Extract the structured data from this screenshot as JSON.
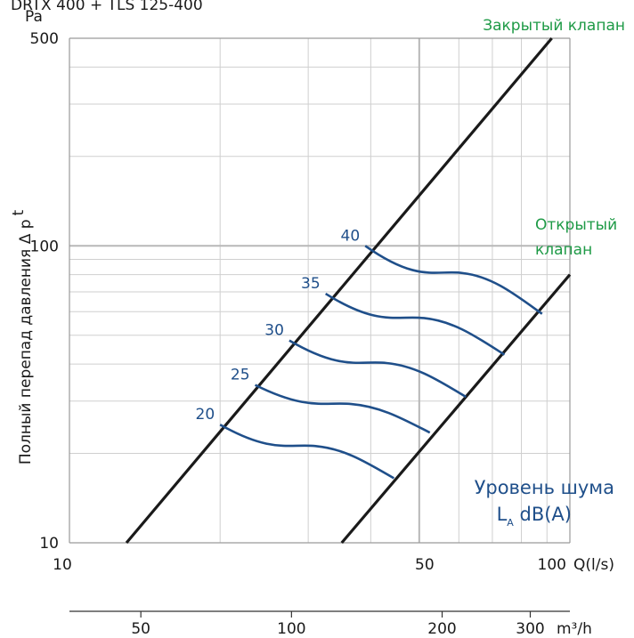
{
  "chart_data": {
    "type": "line",
    "title": "DRTX 400 + TLS 125-400",
    "ylabel": "Полный перепад давления Δ p",
    "ylabel_superscript": "t",
    "yunit": "Pa",
    "xlabel": "Q(l/s)",
    "xlabel2_unit": "m³/h",
    "x_scale": "log",
    "y_scale": "log",
    "xlim": [
      10,
      100
    ],
    "ylim": [
      10,
      500
    ],
    "grid": true,
    "x_ticks": [
      "10",
      "50",
      "100"
    ],
    "y_ticks": [
      "10",
      "100",
      "500"
    ],
    "x2_ticks": [
      "50",
      "100",
      "200",
      "300"
    ],
    "series": [
      {
        "name": "Закрытый клапан",
        "x": [
          13,
          92
        ],
        "y": [
          10,
          500
        ]
      },
      {
        "name": "Открытый клапан",
        "x": [
          35,
          100
        ],
        "y": [
          10,
          80
        ]
      }
    ],
    "noise_curves": [
      {
        "label": "20",
        "x": [
          20,
          44.5
        ],
        "y": [
          25,
          16.5
        ]
      },
      {
        "label": "25",
        "x": [
          23.5,
          52.5
        ],
        "y": [
          34,
          23.5
        ]
      },
      {
        "label": "30",
        "x": [
          27.5,
          62
        ],
        "y": [
          48,
          31
        ]
      },
      {
        "label": "35",
        "x": [
          32.5,
          74
        ],
        "y": [
          69,
          43
        ]
      },
      {
        "label": "40",
        "x": [
          39,
          88
        ],
        "y": [
          100,
          59
        ]
      }
    ],
    "annotation": {
      "line1": "Уровень шума",
      "line2_main": "L",
      "line2_sub": "A",
      "line2_rest": " dB(A)"
    },
    "colors": {
      "lines": "#1a1a1a",
      "noise": "#1f4f8a",
      "legend": "#1e9a46",
      "grid": "#cfcfcf"
    }
  }
}
